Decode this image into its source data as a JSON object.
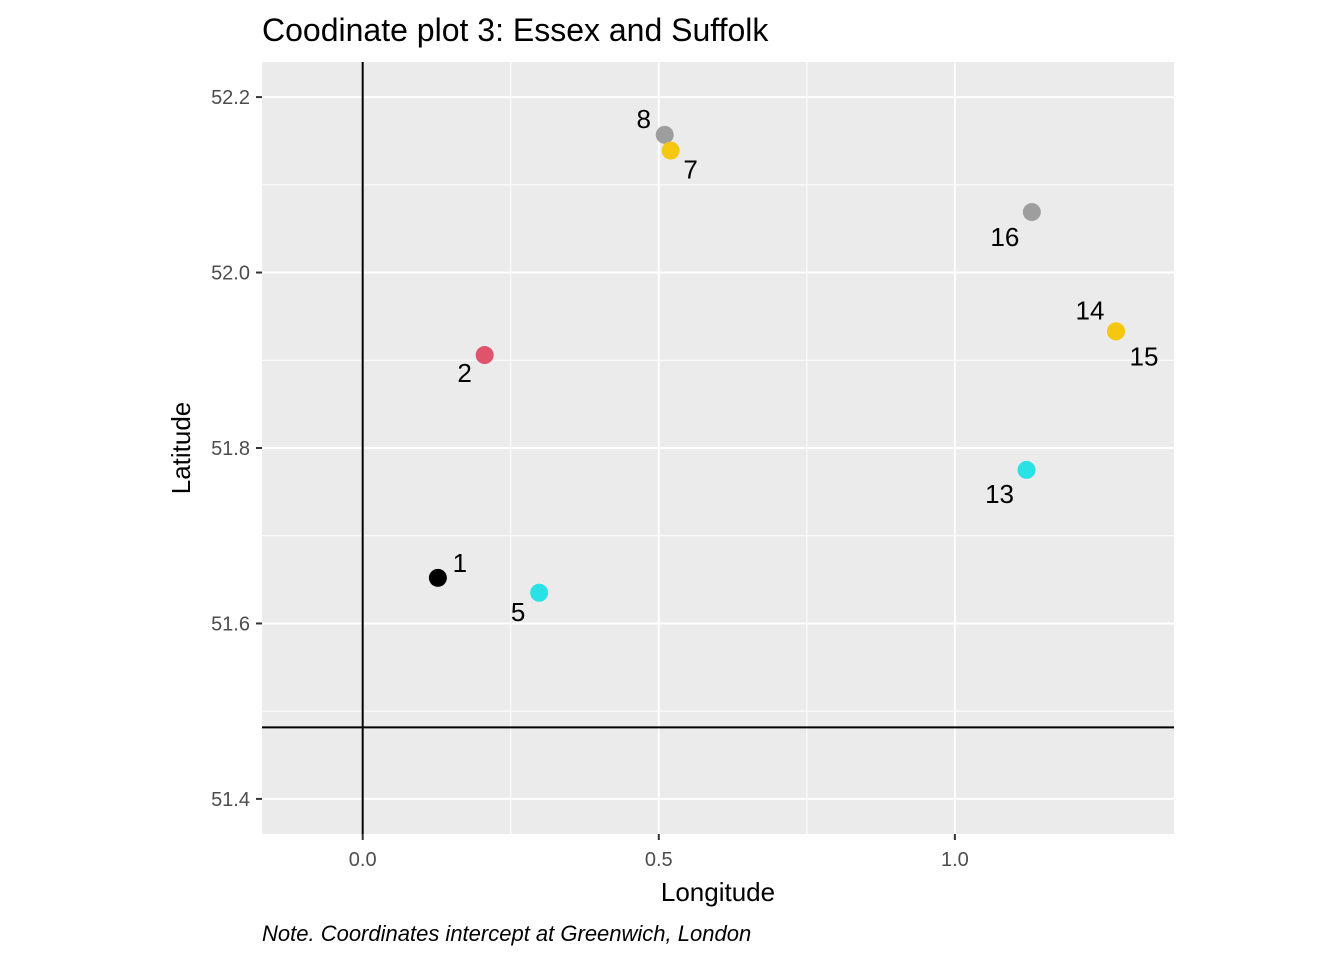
{
  "chart_data": {
    "type": "scatter",
    "title": "Coodinate plot 3: Essex and Suffolk",
    "xlabel": "Longitude",
    "ylabel": "Latitude",
    "note": "Note. Coordinates intercept at Greenwich, London",
    "xlim": [
      -0.17,
      1.37
    ],
    "ylim": [
      51.36,
      52.24
    ],
    "x_ticks": [
      0.0,
      0.5,
      1.0
    ],
    "x_tick_labels": [
      "0.0",
      "0.5",
      "1.0"
    ],
    "y_ticks": [
      51.4,
      51.6,
      51.8,
      52.0,
      52.2
    ],
    "y_tick_labels": [
      "51.4",
      "51.6",
      "51.8",
      "52.0",
      "52.2"
    ],
    "grid": true,
    "reference_lines": {
      "vertical_x": 0.0,
      "horizontal_y": 51.4816
    },
    "points": [
      {
        "label": "1",
        "x": 0.127,
        "y": 51.652,
        "color": "#000000"
      },
      {
        "label": "2",
        "x": 0.206,
        "y": 51.906,
        "color": "#DF536B"
      },
      {
        "label": "5",
        "x": 0.298,
        "y": 51.635,
        "color": "#28E2E5"
      },
      {
        "label": "8",
        "x": 0.51,
        "y": 52.157,
        "color": "#9E9E9E"
      },
      {
        "label": "7",
        "x": 0.52,
        "y": 52.139,
        "color": "#F5C710"
      },
      {
        "label": "16",
        "x": 1.13,
        "y": 52.069,
        "color": "#9E9E9E"
      },
      {
        "label": "14",
        "x": 1.272,
        "y": 51.933,
        "color": "#F5C710"
      },
      {
        "label": "15",
        "x": 1.272,
        "y": 51.933,
        "color": "#F5C710"
      },
      {
        "label": "13",
        "x": 1.121,
        "y": 51.775,
        "color": "#28E2E5"
      }
    ],
    "panel_background": "#EBEBEB",
    "grid_color": "#FFFFFF"
  }
}
